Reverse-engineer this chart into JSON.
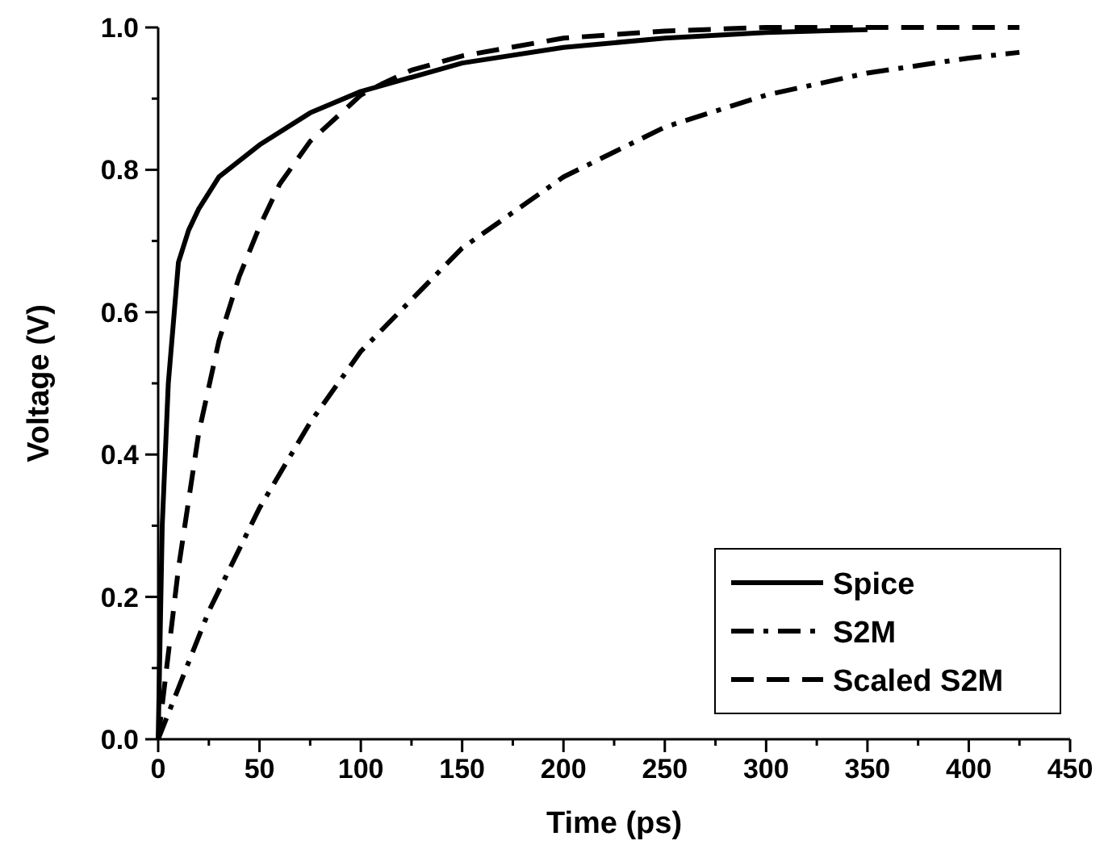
{
  "chart_data": {
    "type": "line",
    "xlabel": "Time (ps)",
    "ylabel": "Voltage (V)",
    "xlim": [
      0,
      450
    ],
    "ylim": [
      0,
      1.0
    ],
    "xticks": [
      0,
      {
        "value": 25,
        "label": null
      },
      50,
      {
        "value": 75,
        "label": null
      },
      100,
      {
        "value": 125,
        "label": null
      },
      150,
      {
        "value": 175,
        "label": null
      },
      200,
      {
        "value": 225,
        "label": null
      },
      250,
      {
        "value": 275,
        "label": null
      },
      300,
      {
        "value": 325,
        "label": null
      },
      350,
      {
        "value": 375,
        "label": null
      },
      400,
      {
        "value": 425,
        "label": null
      },
      450
    ],
    "yticks": [
      {
        "value": 0,
        "label": "0.0"
      },
      {
        "value": 0.1,
        "label": null
      },
      {
        "value": 0.2,
        "label": "0.2"
      },
      {
        "value": 0.3,
        "label": null
      },
      {
        "value": 0.4,
        "label": "0.4"
      },
      {
        "value": 0.5,
        "label": null
      },
      {
        "value": 0.6,
        "label": "0.6"
      },
      {
        "value": 0.7,
        "label": null
      },
      {
        "value": 0.8,
        "label": "0.8"
      },
      {
        "value": 0.9,
        "label": null
      },
      {
        "value": 1.0,
        "label": "1.0"
      }
    ],
    "grid": false,
    "legend": "bottom right",
    "marker": "none",
    "series": [
      {
        "name": "Spice",
        "color": "#000000",
        "line_style": "solid",
        "x": [
          0,
          2,
          5,
          10,
          15,
          20,
          30,
          50,
          75,
          100,
          150,
          200,
          250,
          300,
          350
        ],
        "values": [
          0,
          0.3,
          0.5,
          0.67,
          0.715,
          0.745,
          0.79,
          0.835,
          0.88,
          0.91,
          0.95,
          0.972,
          0.985,
          0.993,
          0.997
        ]
      },
      {
        "name": "S2M",
        "color": "#000000",
        "line_style": "dashdot",
        "x": [
          0,
          25,
          50,
          75,
          100,
          150,
          200,
          250,
          300,
          350,
          400,
          425
        ],
        "values": [
          0,
          0.18,
          0.325,
          0.445,
          0.545,
          0.69,
          0.79,
          0.86,
          0.905,
          0.936,
          0.957,
          0.965
        ]
      },
      {
        "name": "Scaled S2M",
        "color": "#000000",
        "line_style": "dashed",
        "x": [
          0,
          10,
          20,
          30,
          40,
          50,
          60,
          75,
          100,
          110,
          125,
          150,
          200,
          250,
          300,
          350,
          425
        ],
        "values": [
          0,
          0.24,
          0.43,
          0.56,
          0.65,
          0.72,
          0.78,
          0.84,
          0.905,
          0.92,
          0.94,
          0.96,
          0.985,
          0.995,
          1.0,
          1.0,
          1.0
        ]
      }
    ]
  }
}
